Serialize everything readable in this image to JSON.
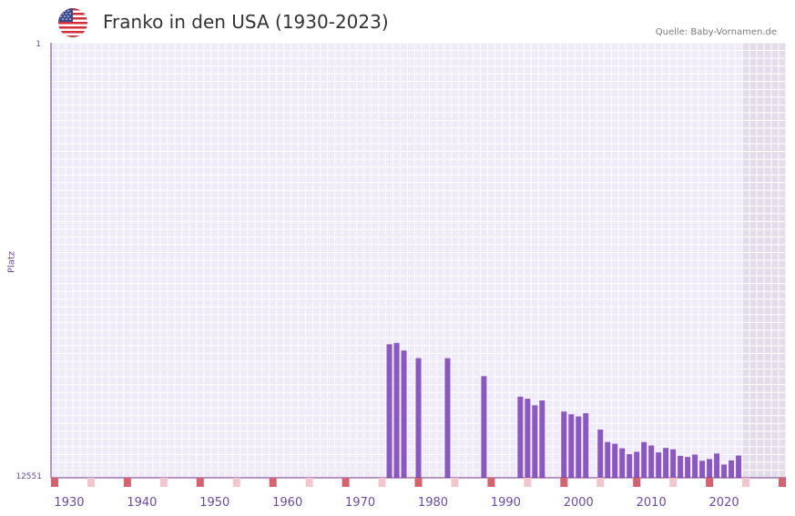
{
  "header": {
    "title": "Franko in den USA (1930-2023)",
    "source": "Quelle: Baby-Vornamen.de",
    "flag_icon": "usa-flag-icon"
  },
  "colors": {
    "bar": "#8b57c4",
    "axis": "#7a3a8a",
    "grid_bg": "#f0ebf8",
    "future_band": "#e3dcea",
    "decade_marker": "#d9606e",
    "half_decade_marker": "#f4c6cc"
  },
  "chart_data": {
    "type": "bar",
    "title": "Franko in den USA (1930-2023)",
    "xlabel": "",
    "ylabel": "Platz",
    "y_inverted": true,
    "ylim": [
      1,
      12551
    ],
    "ytick_labels": [
      "1",
      "12551"
    ],
    "xlim": [
      1928,
      2029
    ],
    "xtick_labels": [
      "1930",
      "1940",
      "1950",
      "1960",
      "1970",
      "1980",
      "1990",
      "2000",
      "2010",
      "2020"
    ],
    "x": [
      1974,
      1975,
      1976,
      1978,
      1982,
      1987,
      1992,
      1993,
      1994,
      1995,
      1998,
      1999,
      2000,
      2001,
      2003,
      2004,
      2005,
      2006,
      2007,
      2008,
      2009,
      2010,
      2011,
      2012,
      2013,
      2014,
      2015,
      2016,
      2017,
      2018,
      2019,
      2020,
      2021,
      2022
    ],
    "values": [
      8700,
      8660,
      8880,
      9100,
      9100,
      9620,
      10210,
      10270,
      10460,
      10320,
      10640,
      10720,
      10780,
      10690,
      11160,
      11520,
      11570,
      11700,
      11870,
      11800,
      11520,
      11620,
      11820,
      11690,
      11730,
      11920,
      11950,
      11880,
      12060,
      12010,
      11850,
      12170,
      12050,
      11910
    ]
  }
}
